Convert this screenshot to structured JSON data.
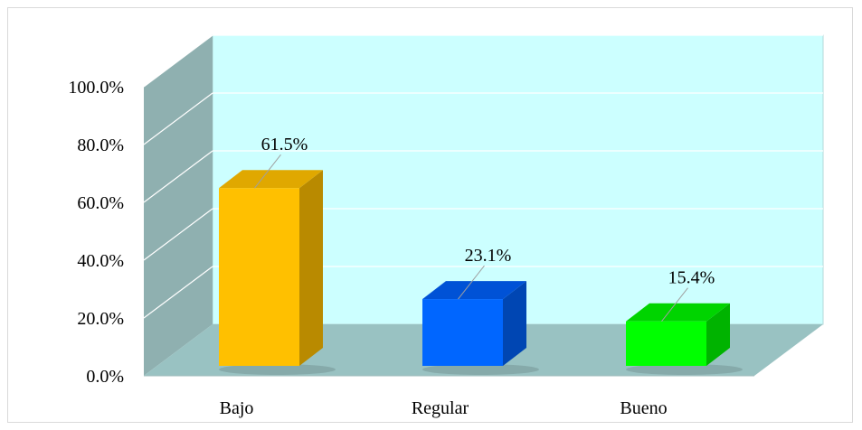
{
  "chart_data": {
    "type": "bar",
    "style": "3d-clustered-column",
    "categories": [
      "Bajo",
      "Regular",
      "Bueno"
    ],
    "values": [
      61.5,
      23.1,
      15.4
    ],
    "data_labels": [
      "61.5%",
      "23.1%",
      "15.4%"
    ],
    "y_ticks": [
      "0.0%",
      "20.0%",
      "40.0%",
      "60.0%",
      "80.0%",
      "100.0%"
    ],
    "ylim": [
      0,
      100
    ],
    "title": "",
    "xlabel": "",
    "ylabel": "",
    "grid": true,
    "legend": "none",
    "colors": {
      "bars": [
        "#FFC000",
        "#0066FF",
        "#00FF00"
      ],
      "bar_sides": [
        "#B98A00",
        "#0046B3",
        "#00B300"
      ],
      "bar_tops": [
        "#E0A800",
        "#0052D6",
        "#00D400"
      ],
      "back_wall": "#CCFFFF",
      "side_wall": "#8FB0B0",
      "floor": "#99C2C2",
      "gridline": "#FFFFFF"
    }
  }
}
